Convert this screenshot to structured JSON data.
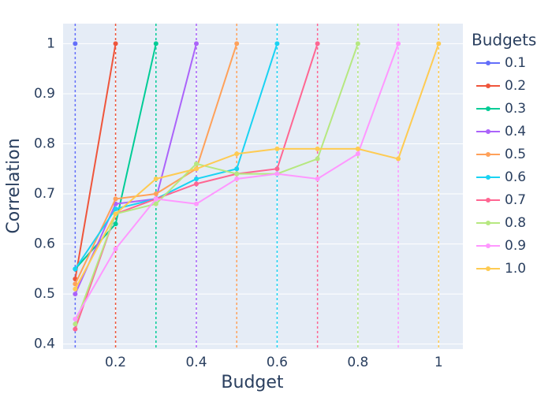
{
  "chart_data": {
    "type": "line",
    "x_label": "Budget",
    "y_label": "Correlation",
    "legend_title": "Budgets",
    "xlim": [
      0.07,
      1.06
    ],
    "ylim": [
      0.39,
      1.04
    ],
    "xticks": [
      0.2,
      0.4,
      0.6,
      0.8,
      1
    ],
    "yticks": [
      0.4,
      0.5,
      0.6,
      0.7,
      0.8,
      0.9,
      1
    ],
    "grid": true,
    "legend": "right",
    "series": [
      {
        "name": "0.1",
        "color": "#636efa",
        "x": [
          0.1
        ],
        "values": [
          1
        ]
      },
      {
        "name": "0.2",
        "color": "#EF553B",
        "x": [
          0.1,
          0.2
        ],
        "values": [
          0.53,
          1
        ]
      },
      {
        "name": "0.3",
        "color": "#00cc96",
        "x": [
          0.1,
          0.2,
          0.3
        ],
        "values": [
          0.55,
          0.64,
          1
        ]
      },
      {
        "name": "0.4",
        "color": "#ab63fa",
        "x": [
          0.1,
          0.2,
          0.3,
          0.4
        ],
        "values": [
          0.5,
          0.68,
          0.69,
          1
        ]
      },
      {
        "name": "0.5",
        "color": "#FFA15A",
        "x": [
          0.1,
          0.2,
          0.3,
          0.4,
          0.5
        ],
        "values": [
          0.52,
          0.69,
          0.7,
          0.75,
          1
        ]
      },
      {
        "name": "0.6",
        "color": "#19d3f3",
        "x": [
          0.1,
          0.2,
          0.3,
          0.4,
          0.5,
          0.6
        ],
        "values": [
          0.55,
          0.67,
          0.69,
          0.73,
          0.75,
          1
        ]
      },
      {
        "name": "0.7",
        "color": "#FF6692",
        "x": [
          0.1,
          0.2,
          0.3,
          0.4,
          0.5,
          0.6,
          0.7
        ],
        "values": [
          0.43,
          0.66,
          0.69,
          0.72,
          0.74,
          0.75,
          1
        ]
      },
      {
        "name": "0.8",
        "color": "#B6E880",
        "x": [
          0.1,
          0.2,
          0.3,
          0.4,
          0.5,
          0.6,
          0.7,
          0.8
        ],
        "values": [
          0.44,
          0.66,
          0.68,
          0.76,
          0.74,
          0.74,
          0.77,
          1
        ]
      },
      {
        "name": "0.9",
        "color": "#FF97FF",
        "x": [
          0.1,
          0.2,
          0.3,
          0.4,
          0.5,
          0.6,
          0.7,
          0.8,
          0.9
        ],
        "values": [
          0.45,
          0.59,
          0.69,
          0.68,
          0.73,
          0.74,
          0.73,
          0.78,
          1
        ]
      },
      {
        "name": "1.0",
        "color": "#FECB52",
        "x": [
          0.1,
          0.2,
          0.3,
          0.4,
          0.5,
          0.6,
          0.7,
          0.8,
          0.9,
          1.0
        ],
        "values": [
          0.51,
          0.66,
          0.73,
          0.75,
          0.78,
          0.79,
          0.79,
          0.79,
          0.77,
          1
        ]
      }
    ]
  }
}
